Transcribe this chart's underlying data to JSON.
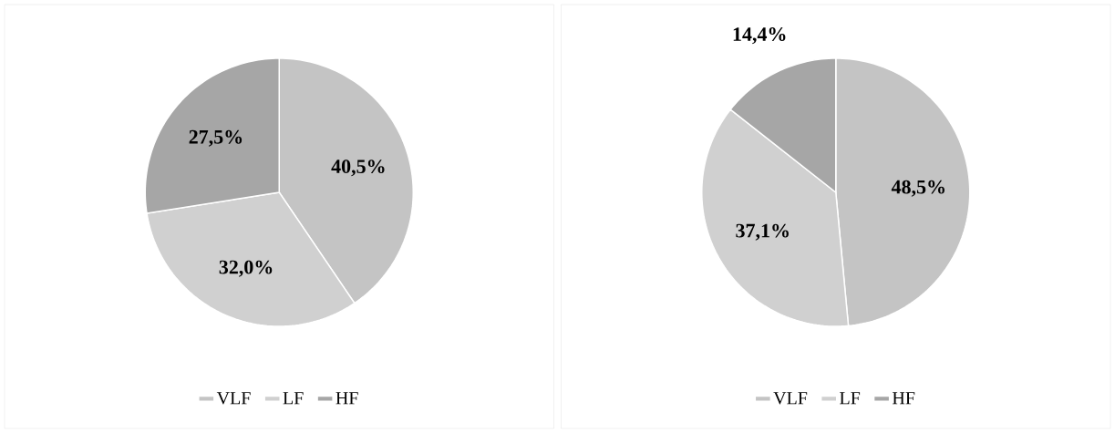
{
  "chart_data": [
    {
      "type": "pie",
      "categories": [
        "VLF",
        "LF",
        "HF"
      ],
      "values": [
        40.5,
        32.0,
        27.5
      ],
      "colors": [
        "#c4c4c4",
        "#d0d0d0",
        "#a6a6a6"
      ],
      "value_labels": [
        "40,5%",
        "32,0%",
        "27,5%"
      ],
      "legend": "bottom"
    },
    {
      "type": "pie",
      "categories": [
        "VLF",
        "LF",
        "HF"
      ],
      "values": [
        48.5,
        37.1,
        14.4
      ],
      "colors": [
        "#c4c4c4",
        "#d0d0d0",
        "#a6a6a6"
      ],
      "value_labels": [
        "48,5%",
        "37,1%",
        "14,4%"
      ],
      "legend": "bottom"
    }
  ]
}
